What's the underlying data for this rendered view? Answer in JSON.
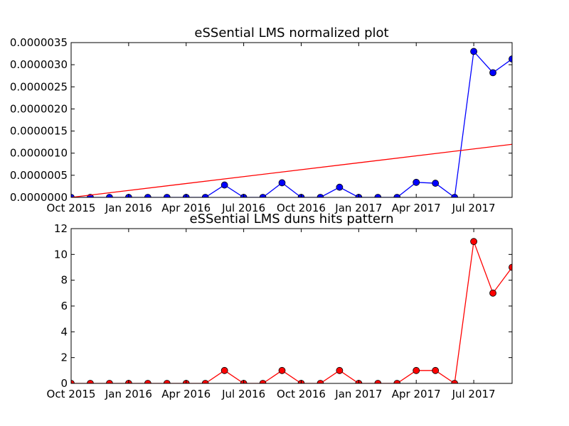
{
  "chart_data": [
    {
      "type": "line",
      "title": "eSSential LMS normalized plot",
      "x": [
        "2015-10-01",
        "2015-11-01",
        "2015-12-01",
        "2016-01-01",
        "2016-02-01",
        "2016-03-01",
        "2016-04-01",
        "2016-05-01",
        "2016-06-01",
        "2016-07-01",
        "2016-08-01",
        "2016-09-01",
        "2016-10-01",
        "2016-11-01",
        "2016-12-01",
        "2017-01-01",
        "2017-02-01",
        "2017-03-01",
        "2017-04-01",
        "2017-05-01",
        "2017-06-01",
        "2017-07-01",
        "2017-08-01",
        "2017-09-01"
      ],
      "xlim": [
        "2015-10-01",
        "2017-09-01"
      ],
      "xticks": [
        "2015-10-01",
        "2016-01-01",
        "2016-04-01",
        "2016-07-01",
        "2016-10-01",
        "2017-01-01",
        "2017-04-01",
        "2017-07-01"
      ],
      "xtick_labels": [
        "Oct 2015",
        "Jan 2016",
        "Apr 2016",
        "Jul 2016",
        "Oct 2016",
        "Jan 2017",
        "Apr 2017",
        "Jul 2017"
      ],
      "ylim": [
        0,
        3.5e-06
      ],
      "yticks": [
        0,
        5e-07,
        1e-06,
        1.5e-06,
        2e-06,
        2.5e-06,
        3e-06,
        3.5e-06
      ],
      "ytick_labels": [
        "0.0000000",
        "0.0000005",
        "0.0000010",
        "0.0000015",
        "0.0000020",
        "0.0000025",
        "0.0000030",
        "0.0000035"
      ],
      "series": [
        {
          "kind": "line-markers",
          "color": "#0000ff",
          "values": [
            0,
            0,
            0,
            0,
            0,
            0,
            0,
            0,
            2.8e-07,
            0,
            0,
            3.3e-07,
            0,
            0,
            2.3e-07,
            0,
            0,
            0,
            3.4e-07,
            3.2e-07,
            0,
            3.3e-06,
            2.82e-06,
            3.13e-06
          ]
        },
        {
          "kind": "trend-line",
          "color": "#ff0000",
          "x": [
            "2015-10-01",
            "2017-09-01"
          ],
          "values": [
            0,
            1.2e-06
          ]
        }
      ]
    },
    {
      "type": "line",
      "title": "eSSential LMS duns hits pattern",
      "x": [
        "2015-10-01",
        "2015-11-01",
        "2015-12-01",
        "2016-01-01",
        "2016-02-01",
        "2016-03-01",
        "2016-04-01",
        "2016-05-01",
        "2016-06-01",
        "2016-07-01",
        "2016-08-01",
        "2016-09-01",
        "2016-10-01",
        "2016-11-01",
        "2016-12-01",
        "2017-01-01",
        "2017-02-01",
        "2017-03-01",
        "2017-04-01",
        "2017-05-01",
        "2017-06-01",
        "2017-07-01",
        "2017-08-01",
        "2017-09-01"
      ],
      "xlim": [
        "2015-10-01",
        "2017-09-01"
      ],
      "xticks": [
        "2015-10-01",
        "2016-01-01",
        "2016-04-01",
        "2016-07-01",
        "2016-10-01",
        "2017-01-01",
        "2017-04-01",
        "2017-07-01"
      ],
      "xtick_labels": [
        "Oct 2015",
        "Jan 2016",
        "Apr 2016",
        "Jul 2016",
        "Oct 2016",
        "Jan 2017",
        "Apr 2017",
        "Jul 2017"
      ],
      "ylim": [
        0,
        12
      ],
      "yticks": [
        0,
        2,
        4,
        6,
        8,
        10,
        12
      ],
      "ytick_labels": [
        "0",
        "2",
        "4",
        "6",
        "8",
        "10",
        "12"
      ],
      "series": [
        {
          "kind": "line-markers",
          "color": "#ff0000",
          "values": [
            0,
            0,
            0,
            0,
            0,
            0,
            0,
            0,
            1,
            0,
            0,
            1,
            0,
            0,
            1,
            0,
            0,
            0,
            1,
            1,
            0,
            11,
            7,
            9
          ]
        }
      ]
    }
  ]
}
